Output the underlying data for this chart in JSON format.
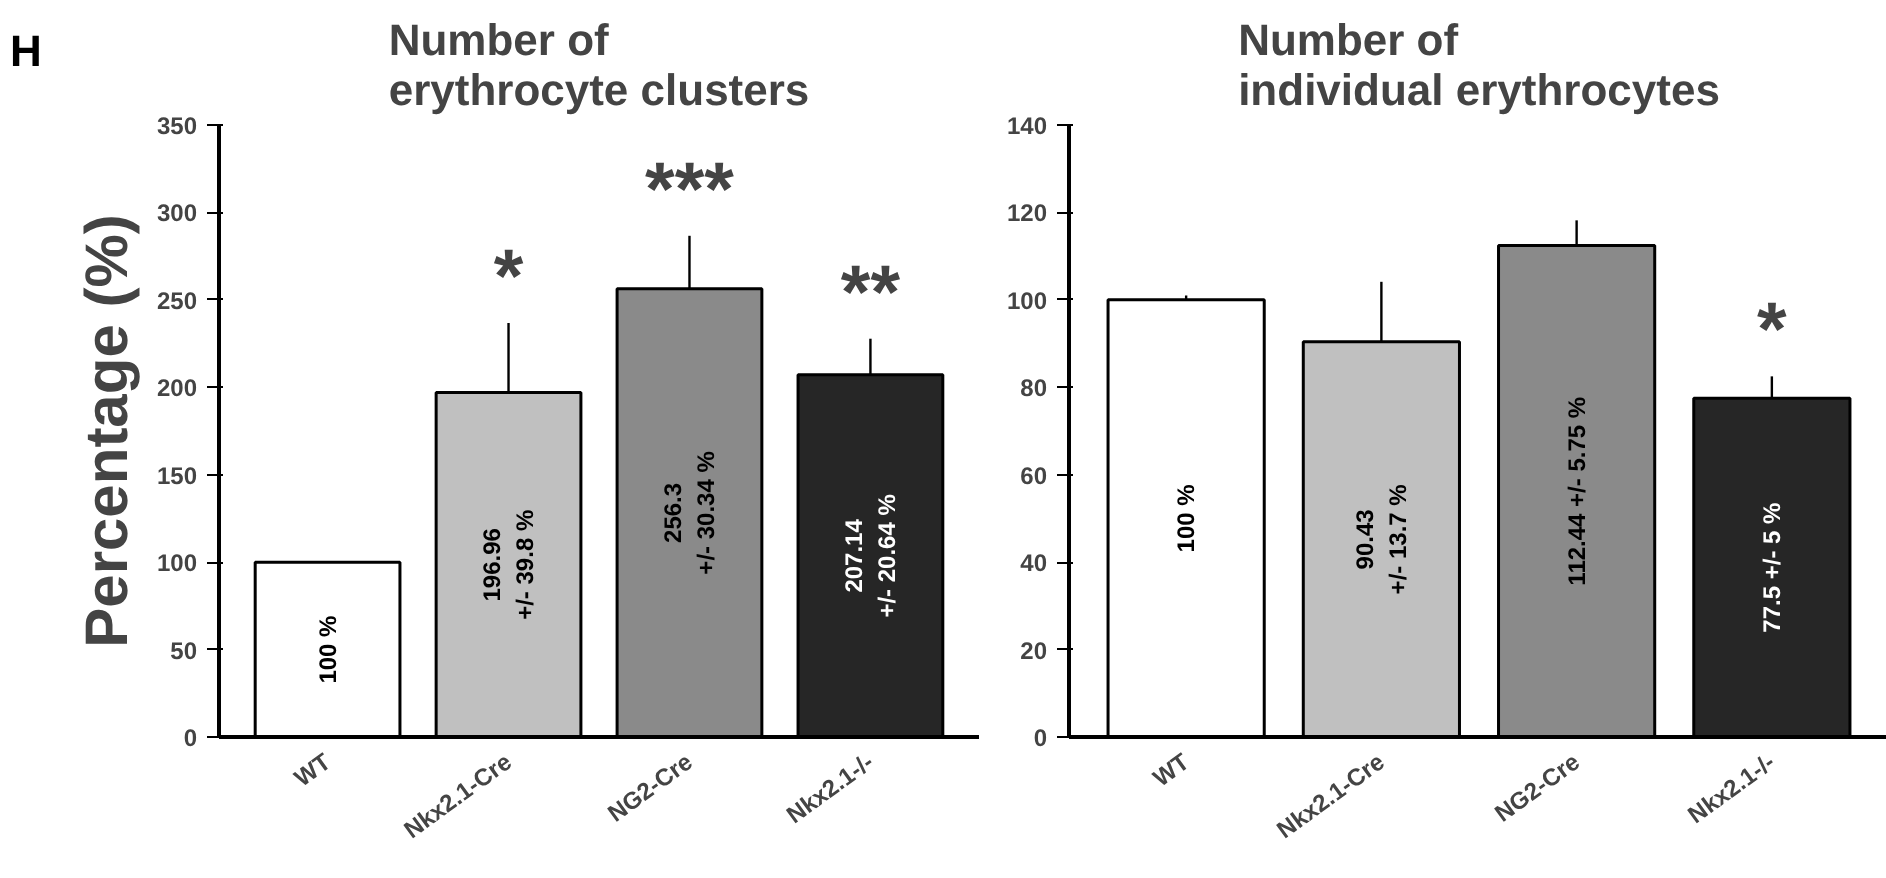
{
  "chart_data": [
    {
      "type": "bar",
      "title": "Number of\nerythrocyte clusters",
      "ylabel": "Percentage (%)",
      "categories": [
        "WT",
        "Nkx2.1-Cre",
        "NG2-Cre",
        "Nkx2.1-/-"
      ],
      "values": [
        100,
        196.96,
        256.3,
        207.14
      ],
      "errors": [
        null,
        39.8,
        30.34,
        20.64
      ],
      "colors": [
        "#ffffff",
        "#c0c0c0",
        "#8a8a8a",
        "#262626"
      ],
      "value_labels": [
        "100 %",
        "196.96\n+/- 39.8 %",
        "256.3\n+/- 30.34 %",
        "207.14\n+/- 20.64 %"
      ],
      "ylim": [
        0,
        350
      ],
      "yticks": [
        0,
        50,
        100,
        150,
        200,
        250,
        300,
        350
      ],
      "grid": false,
      "annotations": [
        "H",
        "*",
        "***",
        "**"
      ]
    },
    {
      "type": "bar",
      "title": "Number of\nindividual erythrocytes",
      "categories": [
        "WT",
        "Nkx2.1-Cre",
        "NG2-Cre",
        "Nkx2.1-/-"
      ],
      "values": [
        100,
        90.43,
        112.44,
        77.5
      ],
      "errors": [
        1,
        13.7,
        5.75,
        5
      ],
      "colors": [
        "#ffffff",
        "#c0c0c0",
        "#8a8a8a",
        "#262626"
      ],
      "value_labels": [
        "100 %",
        "90.43\n+/- 13.7 %",
        "112.44 +/- 5.75 %",
        "77.5 +/- 5 %"
      ],
      "ylim": [
        0,
        140
      ],
      "yticks": [
        0,
        20,
        40,
        60,
        80,
        100,
        120,
        140
      ],
      "grid": false,
      "annotations": [
        "*"
      ]
    }
  ]
}
